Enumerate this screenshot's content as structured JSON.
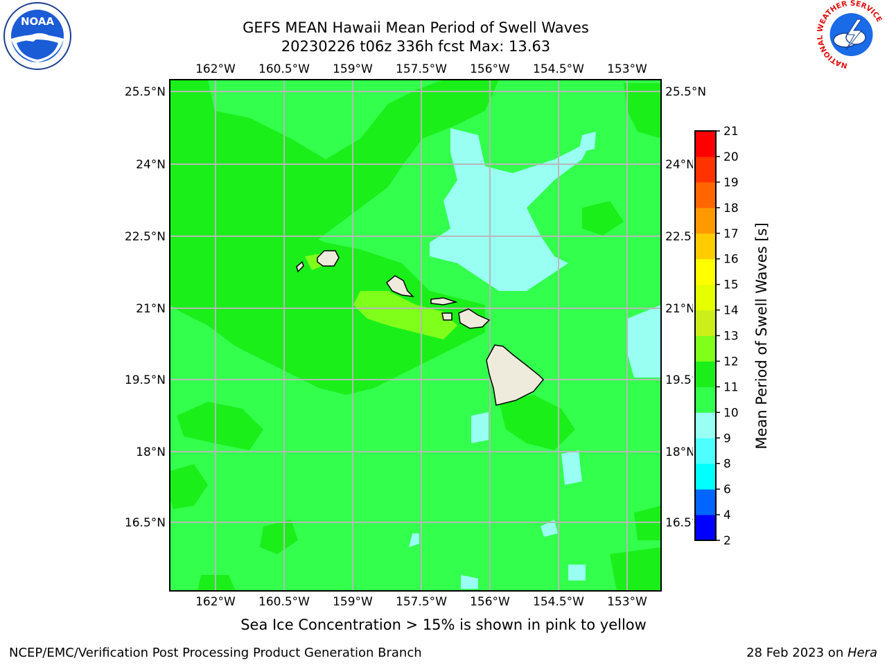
{
  "title": {
    "line1": "GEFS MEAN Hawaii Mean Period of Swell Waves",
    "line2": "20230226 t06z 336h fcst   Max: 13.63"
  },
  "map": {
    "lon_labels": [
      "162°W",
      "160.5°W",
      "159°W",
      "157.5°W",
      "156°W",
      "154.5°W",
      "153°W"
    ],
    "lat_labels": [
      "25.5°N",
      "24°N",
      "22.5°N",
      "21°N",
      "19.5°N",
      "18°N",
      "16.5°N"
    ],
    "lon_range": [
      -163,
      -152.6
    ],
    "lat_range": [
      15.2,
      25.8
    ],
    "ocean_color": "#33ff4d",
    "land_color": "#eeebdc"
  },
  "colorbar": {
    "label": "Mean Period of Swell Waves [s]",
    "tick_labels": [
      "2",
      "4",
      "6",
      "8",
      "9",
      "10",
      "11",
      "12",
      "13",
      "14",
      "15",
      "16",
      "17",
      "18",
      "19",
      "20",
      "21"
    ],
    "colors": [
      "#0000ff",
      "#0066ff",
      "#00ffff",
      "#4dffff",
      "#99fff2",
      "#33ff4d",
      "#1aef1a",
      "#80ff1a",
      "#ccef1a",
      "#e6ff00",
      "#ffff00",
      "#ffcc00",
      "#ff9900",
      "#ff6600",
      "#ff3300",
      "#ff0000"
    ]
  },
  "ice_note": "Sea Ice Concentration > 15% is shown in pink to yellow",
  "footer": {
    "left": "NCEP/EMC/Verification Post Processing Product Generation Branch",
    "right_date": "28 Feb 2023 on ",
    "right_machine": "Hera"
  },
  "logos": {
    "noaa": "NOAA",
    "nws_ring": "NATIONAL WEATHER SERVICE"
  }
}
